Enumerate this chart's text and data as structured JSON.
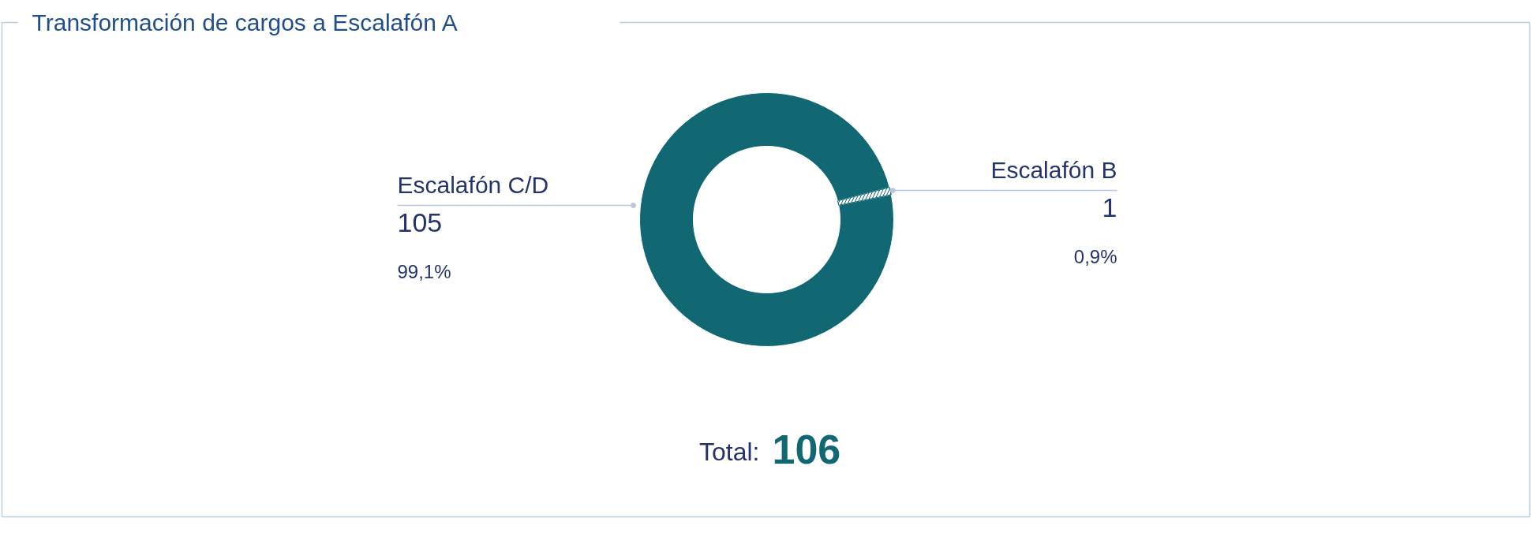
{
  "chart_data": {
    "type": "donut",
    "title": "Transformación de cargos a Escalafón A",
    "categories": [
      "Escalafón C/D",
      "Escalafón B"
    ],
    "values": [
      105,
      1
    ],
    "colors": [
      "#126872",
      "#ffffff"
    ],
    "value_labels": [
      "105",
      "1"
    ],
    "annotations": [
      "99,1%",
      "0,9%",
      "Total:",
      "106"
    ]
  }
}
